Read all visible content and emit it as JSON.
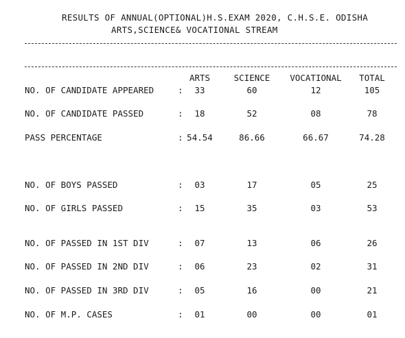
{
  "header": {
    "title_line1": "RESULTS OF ANNUAL(OPTIONAL)H.S.EXAM 2020, C.H.S.E. ODISHA",
    "title_line2": "ARTS,SCIENCE& VOCATIONAL STREAM"
  },
  "columns": [
    "ARTS",
    "SCIENCE",
    "VOCATIONAL",
    "TOTAL"
  ],
  "rows": [
    {
      "label": "NO. OF CANDIDATE APPEARED",
      "values": [
        "33",
        "60",
        "12",
        "105"
      ]
    },
    {
      "label": "NO. OF CANDIDATE PASSED",
      "values": [
        "18",
        "52",
        "08",
        "78"
      ]
    },
    {
      "label": "PASS PERCENTAGE",
      "values": [
        "54.54",
        "86.66",
        "66.67",
        "74.28"
      ]
    },
    {
      "label": "NO. OF BOYS PASSED",
      "values": [
        "03",
        "17",
        "05",
        "25"
      ]
    },
    {
      "label": "NO. OF GIRLS PASSED",
      "values": [
        "15",
        "35",
        "03",
        "53"
      ]
    },
    {
      "label": "NO. OF PASSED IN 1ST DIV",
      "values": [
        "07",
        "13",
        "06",
        "26"
      ]
    },
    {
      "label": "NO. OF PASSED IN 2ND DIV",
      "values": [
        "06",
        "23",
        "02",
        "31"
      ]
    },
    {
      "label": "NO. OF PASSED IN 3RD DIV",
      "values": [
        "05",
        "16",
        "00",
        "21"
      ]
    },
    {
      "label": "NO. OF M.P. CASES",
      "values": [
        "01",
        "00",
        "00",
        "01"
      ]
    }
  ],
  "separator": ":"
}
